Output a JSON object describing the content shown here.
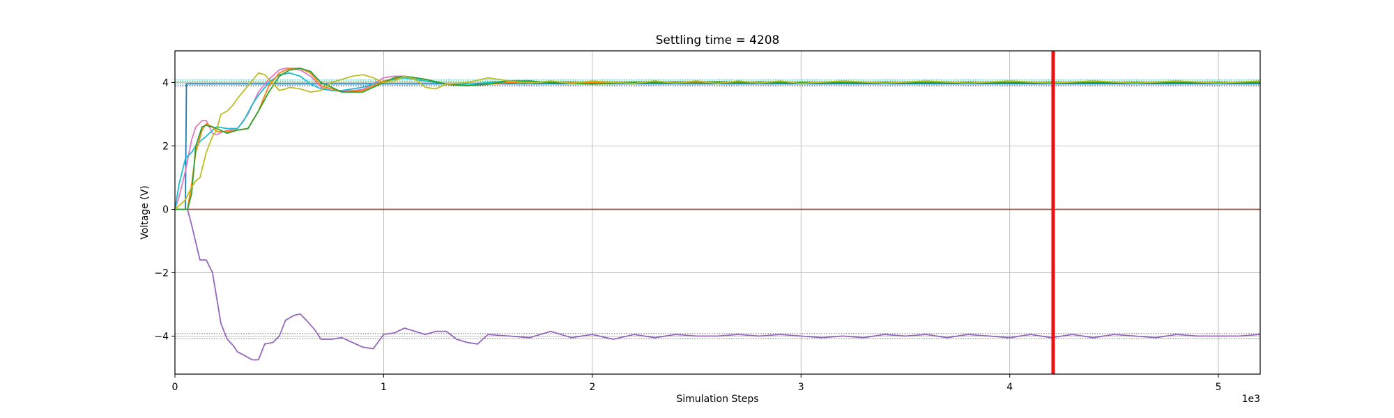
{
  "chart_data": {
    "type": "line",
    "title": "Settling time = 4208",
    "xlabel": "Simulation Steps",
    "ylabel": "Voltage (V)",
    "x_multiplier_label": "1e3",
    "xlim": [
      0,
      5.2
    ],
    "ylim": [
      -5.2,
      5.0
    ],
    "xticks": [
      0,
      1,
      2,
      3,
      4,
      5
    ],
    "yticks": [
      -4,
      -2,
      0,
      2,
      4
    ],
    "grid": true,
    "settling_time_marker": {
      "x": 4.208,
      "color": "#ee1111"
    },
    "reference_lines": [
      {
        "y": 4.08,
        "color": "#17becf",
        "style": "dotted"
      },
      {
        "y": 4.04,
        "color": "#2ca02c",
        "style": "dotted"
      },
      {
        "y": 3.96,
        "color": "#1f77b4",
        "style": "dotted"
      },
      {
        "y": 3.9,
        "color": "#1f3a6b",
        "style": "dotted"
      },
      {
        "y": -3.92,
        "color": "#7f7f7f",
        "style": "dotted"
      },
      {
        "y": -4.08,
        "color": "#7f7f7f",
        "style": "dotted"
      }
    ],
    "series": [
      {
        "color": "#1f77b4",
        "x": [
          0,
          0.03,
          0.05,
          0.055,
          0.1,
          0.5,
          1.0,
          2.0,
          3.0,
          4.0,
          5.2
        ],
        "y": [
          0,
          0,
          0,
          3.96,
          3.96,
          3.96,
          3.96,
          3.96,
          3.96,
          3.96,
          3.96
        ]
      },
      {
        "color": "#8c564b",
        "x": [
          0,
          1.0,
          2.0,
          3.0,
          4.0,
          5.2
        ],
        "y": [
          0,
          0,
          0,
          0,
          0,
          0
        ]
      },
      {
        "color": "#9467bd",
        "x": [
          0,
          0.06,
          0.08,
          0.12,
          0.15,
          0.18,
          0.2,
          0.22,
          0.25,
          0.28,
          0.3,
          0.33,
          0.37,
          0.4,
          0.43,
          0.47,
          0.5,
          0.53,
          0.57,
          0.6,
          0.63,
          0.67,
          0.7,
          0.75,
          0.8,
          0.85,
          0.9,
          0.95,
          1.0,
          1.05,
          1.1,
          1.15,
          1.2,
          1.25,
          1.3,
          1.35,
          1.4,
          1.45,
          1.5,
          1.6,
          1.7,
          1.8,
          1.9,
          2.0,
          2.1,
          2.2,
          2.3,
          2.4,
          2.5,
          2.6,
          2.7,
          2.8,
          2.9,
          3.0,
          3.1,
          3.2,
          3.3,
          3.4,
          3.5,
          3.6,
          3.7,
          3.8,
          3.9,
          4.0,
          4.1,
          4.2,
          4.3,
          4.4,
          4.5,
          4.6,
          4.7,
          4.8,
          4.9,
          5.0,
          5.1,
          5.2
        ],
        "y": [
          0,
          0,
          -0.5,
          -1.6,
          -1.6,
          -2.0,
          -2.8,
          -3.6,
          -4.1,
          -4.3,
          -4.5,
          -4.6,
          -4.75,
          -4.75,
          -4.25,
          -4.2,
          -4.0,
          -3.5,
          -3.35,
          -3.3,
          -3.5,
          -3.8,
          -4.1,
          -4.1,
          -4.05,
          -4.2,
          -4.35,
          -4.4,
          -3.95,
          -3.9,
          -3.75,
          -3.85,
          -3.95,
          -3.85,
          -3.85,
          -4.1,
          -4.2,
          -4.25,
          -3.95,
          -4.0,
          -4.05,
          -3.85,
          -4.05,
          -3.95,
          -4.1,
          -3.95,
          -4.05,
          -3.95,
          -4.0,
          -4.0,
          -3.95,
          -4.0,
          -3.95,
          -4.0,
          -4.05,
          -4.0,
          -4.05,
          -3.95,
          -4.0,
          -3.95,
          -4.05,
          -3.95,
          -4.0,
          -4.05,
          -3.95,
          -4.05,
          -3.95,
          -4.05,
          -3.95,
          -4.0,
          -4.05,
          -3.95,
          -4.0,
          -4.0,
          -4.0,
          -3.95
        ]
      },
      {
        "color": "#e377c2",
        "x": [
          0,
          0.02,
          0.05,
          0.08,
          0.1,
          0.13,
          0.15,
          0.18,
          0.2,
          0.23,
          0.26,
          0.3,
          0.35,
          0.4,
          0.45,
          0.5,
          0.53,
          0.55,
          0.6,
          0.65,
          0.7,
          0.75,
          0.8,
          0.9,
          1.0,
          1.05,
          1.1,
          1.2,
          1.3,
          1.4,
          1.5,
          1.6,
          1.7,
          1.8,
          1.9,
          2.0,
          2.2,
          2.5,
          3.0,
          3.5,
          4.0,
          4.5,
          5.2
        ],
        "y": [
          0,
          0.4,
          1.2,
          2.2,
          2.6,
          2.8,
          2.8,
          2.4,
          2.35,
          2.45,
          2.5,
          2.55,
          3.0,
          3.7,
          4.1,
          4.4,
          4.45,
          4.45,
          4.4,
          4.2,
          3.85,
          3.75,
          3.72,
          3.78,
          4.15,
          4.2,
          4.2,
          4.1,
          3.95,
          3.9,
          3.95,
          4.0,
          4.05,
          4.0,
          4.0,
          4.0,
          4.0,
          4.0,
          4.0,
          4.0,
          4.0,
          4.0,
          4.0
        ]
      },
      {
        "color": "#17becf",
        "x": [
          0,
          0.02,
          0.05,
          0.08,
          0.1,
          0.13,
          0.15,
          0.18,
          0.2,
          0.25,
          0.3,
          0.33,
          0.37,
          0.4,
          0.45,
          0.5,
          0.55,
          0.6,
          0.65,
          0.7,
          0.75,
          0.8,
          0.9,
          1.0,
          1.1,
          1.2,
          1.3,
          1.4,
          1.5,
          1.6,
          1.7,
          1.8,
          2.0,
          2.3,
          2.6,
          3.0,
          3.5,
          4.0,
          4.5,
          5.2
        ],
        "y": [
          0,
          0.8,
          1.6,
          1.8,
          2.0,
          2.2,
          2.3,
          2.5,
          2.6,
          2.55,
          2.55,
          2.8,
          3.3,
          3.6,
          4.0,
          4.25,
          4.3,
          4.2,
          3.95,
          3.8,
          3.75,
          3.75,
          3.85,
          4.05,
          4.15,
          4.05,
          3.95,
          3.95,
          4.0,
          4.05,
          4.0,
          4.0,
          4.0,
          4.02,
          4.0,
          4.0,
          4.0,
          4.0,
          4.0,
          4.0
        ]
      },
      {
        "color": "#ff7f0e",
        "x": [
          0,
          0.04,
          0.06,
          0.08,
          0.1,
          0.13,
          0.15,
          0.18,
          0.2,
          0.25,
          0.3,
          0.35,
          0.4,
          0.45,
          0.5,
          0.55,
          0.6,
          0.65,
          0.7,
          0.8,
          0.9,
          1.0,
          1.1,
          1.2,
          1.3,
          1.4,
          1.5,
          1.6,
          1.8,
          2.0,
          2.5,
          3.0,
          4.0,
          5.2
        ],
        "y": [
          0,
          0,
          0,
          0.8,
          1.8,
          2.5,
          2.7,
          2.6,
          2.45,
          2.45,
          2.5,
          2.55,
          3.1,
          3.9,
          4.3,
          4.45,
          4.45,
          4.3,
          3.9,
          3.7,
          3.75,
          4.05,
          4.2,
          4.1,
          3.95,
          3.9,
          3.95,
          4.0,
          4.02,
          4.0,
          4.0,
          4.0,
          4.0,
          4.0
        ]
      },
      {
        "color": "#2ca02c",
        "x": [
          0,
          0.06,
          0.08,
          0.1,
          0.13,
          0.15,
          0.18,
          0.2,
          0.25,
          0.3,
          0.35,
          0.4,
          0.45,
          0.5,
          0.55,
          0.6,
          0.65,
          0.7,
          0.8,
          0.9,
          1.0,
          1.05,
          1.1,
          1.2,
          1.3,
          1.4,
          1.5,
          1.6,
          1.7,
          1.8,
          2.0,
          2.2,
          2.5,
          3.0,
          3.5,
          4.0,
          4.5,
          5.2
        ],
        "y": [
          0,
          0,
          0.5,
          2.0,
          2.6,
          2.65,
          2.6,
          2.55,
          2.4,
          2.5,
          2.55,
          3.1,
          3.7,
          4.2,
          4.4,
          4.45,
          4.35,
          4.0,
          3.7,
          3.7,
          4.0,
          4.15,
          4.2,
          4.1,
          3.95,
          3.9,
          3.95,
          4.05,
          4.05,
          4.0,
          3.95,
          4.0,
          4.02,
          4.0,
          4.0,
          4.0,
          4.0,
          4.0
        ]
      },
      {
        "color": "#bcbd22",
        "x": [
          0,
          0.05,
          0.08,
          0.1,
          0.12,
          0.15,
          0.18,
          0.2,
          0.22,
          0.25,
          0.28,
          0.3,
          0.35,
          0.4,
          0.43,
          0.45,
          0.5,
          0.53,
          0.55,
          0.6,
          0.65,
          0.7,
          0.75,
          0.8,
          0.85,
          0.9,
          0.95,
          1.0,
          1.05,
          1.1,
          1.15,
          1.2,
          1.25,
          1.3,
          1.4,
          1.5,
          1.55,
          1.6,
          1.7,
          1.8,
          1.9,
          2.0,
          2.1,
          2.2,
          2.3,
          2.4,
          2.5,
          2.6,
          2.7,
          2.8,
          2.9,
          3.0,
          3.2,
          3.4,
          3.6,
          3.8,
          4.0,
          4.2,
          4.4,
          4.6,
          4.8,
          5.0,
          5.2
        ],
        "y": [
          0,
          0.3,
          0.7,
          0.9,
          1.0,
          1.8,
          2.3,
          2.5,
          3.0,
          3.1,
          3.3,
          3.5,
          3.9,
          4.3,
          4.25,
          4.1,
          3.75,
          3.8,
          3.85,
          3.8,
          3.7,
          3.75,
          4.0,
          4.1,
          4.2,
          4.25,
          4.15,
          4.0,
          4.05,
          4.2,
          4.1,
          3.85,
          3.8,
          3.95,
          4.0,
          4.15,
          4.1,
          4.05,
          3.98,
          4.05,
          3.97,
          4.05,
          4.0,
          3.97,
          4.05,
          3.98,
          4.05,
          3.97,
          4.05,
          3.98,
          4.05,
          3.97,
          4.05,
          3.98,
          4.05,
          3.98,
          4.05,
          3.98,
          4.05,
          3.98,
          4.05,
          3.98,
          4.05
        ]
      }
    ]
  }
}
